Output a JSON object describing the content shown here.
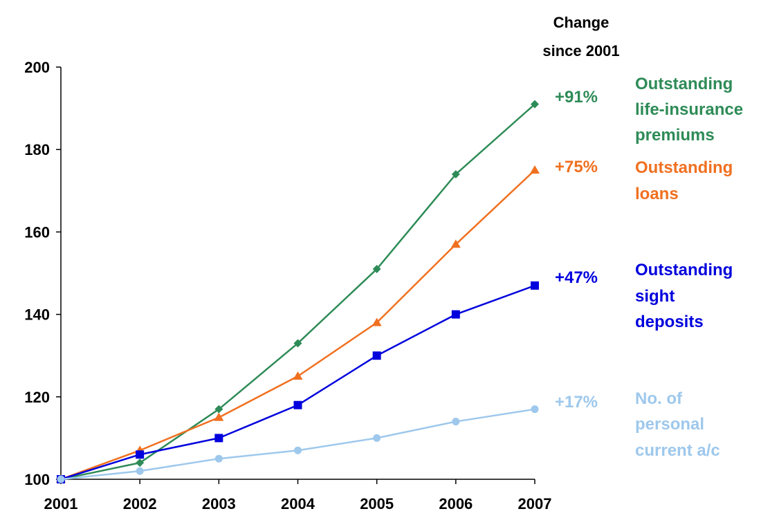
{
  "chart_data": {
    "type": "line",
    "x": [
      "2001",
      "2002",
      "2003",
      "2004",
      "2005",
      "2006",
      "2007"
    ],
    "ylim": [
      100,
      200
    ],
    "yticks": [
      "100",
      "120",
      "140",
      "160",
      "180",
      "200"
    ],
    "grid": false,
    "change_header": [
      "Change",
      "since 2001"
    ],
    "series": [
      {
        "key": "life",
        "name_lines": [
          "Outstanding",
          "life-insurance",
          "premiums"
        ],
        "change": "+91%",
        "color": "#2e8b57",
        "marker": "diamond",
        "values": [
          100,
          104,
          117,
          133,
          151,
          174,
          191
        ]
      },
      {
        "key": "loans",
        "name_lines": [
          "Outstanding",
          "loans"
        ],
        "change": "+75%",
        "color": "#f07020",
        "marker": "triangle",
        "values": [
          100,
          107,
          115,
          125,
          138,
          157,
          175
        ]
      },
      {
        "key": "sight",
        "name_lines": [
          "Outstanding",
          "sight",
          "deposits"
        ],
        "change": "+47%",
        "color": "#0000dd",
        "marker": "square",
        "values": [
          100,
          106,
          110,
          118,
          130,
          140,
          147
        ]
      },
      {
        "key": "accounts",
        "name_lines": [
          "No. of",
          "personal",
          "current a/c"
        ],
        "change": "+17%",
        "color": "#9ec8ec",
        "marker": "circle",
        "values": [
          100,
          102,
          105,
          107,
          110,
          114,
          117
        ]
      }
    ]
  }
}
